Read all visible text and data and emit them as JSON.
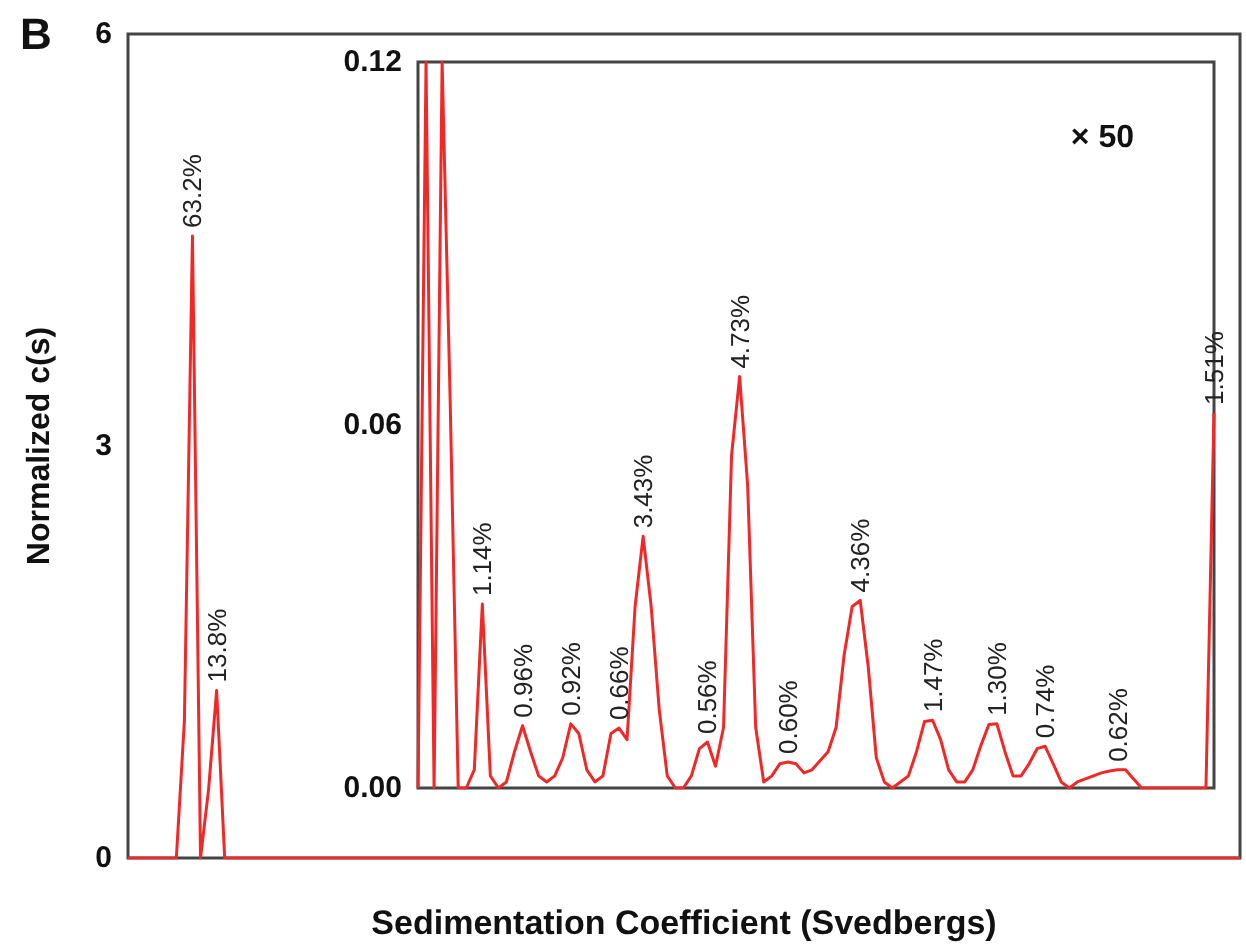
{
  "chart_data": [
    {
      "type": "line",
      "title": "B",
      "xlabel": "Sedimentation Coefficient (Svedbergs)",
      "ylabel": "Normalized c(s)",
      "color": "#f02828",
      "tick_labels": "y",
      "ylim": [
        0,
        6
      ],
      "yticks": [
        0,
        3,
        6
      ],
      "annotations": [
        {
          "text": "63.2%",
          "y": 4.53
        },
        {
          "text": "13.8%",
          "y": 1.22
        }
      ],
      "categories": [
        null,
        null,
        null,
        null,
        null,
        null,
        null,
        null,
        null,
        null,
        null,
        null,
        null,
        null,
        null,
        null,
        null,
        null,
        null,
        null,
        null,
        null,
        null,
        null,
        null,
        null,
        null,
        null,
        null,
        null,
        null,
        null,
        null,
        null,
        null,
        null,
        null,
        null,
        null,
        null,
        null,
        null,
        null,
        null,
        null,
        null,
        null,
        null,
        null,
        null,
        null,
        null,
        null,
        null,
        null,
        null,
        null,
        null,
        null,
        null,
        null,
        null,
        null,
        null,
        null,
        null,
        null,
        null,
        null,
        null,
        null,
        null,
        null,
        null,
        null,
        null,
        null,
        null,
        null,
        null,
        null,
        null,
        null,
        null,
        null,
        null,
        null,
        null,
        null,
        null,
        null,
        null,
        null,
        null,
        null,
        null,
        null,
        null,
        null,
        null,
        null,
        null,
        null,
        null,
        null,
        null,
        null,
        null,
        null,
        null,
        null,
        null,
        null,
        null,
        null,
        null,
        null,
        null,
        null,
        null,
        null,
        null,
        null,
        null,
        null,
        null,
        null,
        null,
        null,
        null,
        null,
        null,
        null,
        null,
        null,
        null,
        null,
        null,
        null
      ],
      "values": [
        0,
        0,
        0,
        0,
        0,
        0,
        0,
        1.0,
        4.53,
        0,
        0.5,
        1.22,
        0,
        0,
        0,
        0,
        0,
        0,
        0,
        0,
        0,
        0,
        0,
        0,
        0,
        0,
        0,
        0,
        0,
        0,
        0,
        0,
        0,
        0,
        0,
        0,
        0,
        0,
        0,
        0,
        0,
        0,
        0,
        0,
        0,
        0,
        0,
        0,
        0,
        0,
        0,
        0,
        0,
        0,
        0,
        0,
        0,
        0,
        0,
        0,
        0,
        0,
        0,
        0,
        0,
        0,
        0,
        0,
        0,
        0,
        0,
        0,
        0,
        0,
        0,
        0,
        0,
        0,
        0,
        0,
        0,
        0,
        0,
        0,
        0,
        0,
        0,
        0,
        0,
        0,
        0,
        0,
        0,
        0,
        0,
        0,
        0,
        0,
        0,
        0,
        0,
        0,
        0,
        0,
        0,
        0,
        0,
        0,
        0,
        0,
        0,
        0,
        0,
        0,
        0,
        0,
        0,
        0,
        0,
        0,
        0,
        0,
        0,
        0,
        0,
        0,
        0,
        0,
        0,
        0,
        0,
        0,
        0,
        0,
        0,
        0,
        0,
        0,
        0
      ]
    },
    {
      "type": "line",
      "color": "#f02828",
      "tick_labels": "y",
      "annotations": [
        "× 50",
        {
          "text": "1.14%",
          "y": 0.0304
        },
        {
          "text": "0.96%",
          "y": 0.0103
        },
        {
          "text": "0.92%",
          "y": 0.0106
        },
        {
          "text": "0.66%",
          "y": 0.0099
        },
        {
          "text": "3.43%",
          "y": 0.0416
        },
        {
          "text": "0.56%",
          "y": 0.0076
        },
        {
          "text": "4.73%",
          "y": 0.068
        },
        {
          "text": "0.60%",
          "y": 0.0043
        },
        {
          "text": "4.36%",
          "y": 0.031
        },
        {
          "text": "1.47%",
          "y": 0.0112
        },
        {
          "text": "1.30%",
          "y": 0.0106
        },
        {
          "text": "0.74%",
          "y": 0.0069
        },
        {
          "text": "0.62%",
          "y": 0.003
        },
        {
          "text": "1.51%",
          "y": 0.062
        }
      ],
      "ylim": [
        0,
        0.12
      ],
      "yticks": [
        {
          "value": 0,
          "label": "0.00"
        },
        0.06,
        0.12
      ],
      "categories": [
        null,
        null,
        null,
        null,
        null,
        null,
        null,
        null,
        null,
        null,
        null,
        null,
        null,
        null,
        null,
        null,
        null,
        null,
        null,
        null,
        null,
        null,
        null,
        null,
        null,
        null,
        null,
        null,
        null,
        null,
        null,
        null,
        null,
        null,
        null,
        null,
        null,
        null,
        null,
        null,
        null,
        null,
        null,
        null,
        null,
        null,
        null,
        null,
        null,
        null,
        null,
        null,
        null,
        null,
        null,
        null,
        null,
        null,
        null,
        null,
        null,
        null,
        null,
        null,
        null,
        null,
        null,
        null,
        null,
        null,
        null,
        null,
        null,
        null,
        null,
        null,
        null,
        null,
        null,
        null,
        null,
        null,
        null,
        null,
        null,
        null,
        null,
        null,
        null,
        null,
        null,
        null,
        null,
        null,
        null,
        null,
        null,
        null,
        null,
        null
      ],
      "values": [
        0,
        0.12,
        0,
        0.12,
        0.064,
        0,
        0,
        0.003,
        0.0304,
        0.002,
        0,
        0.001,
        0.006,
        0.0103,
        0.006,
        0.002,
        0.001,
        0.002,
        0.005,
        0.0106,
        0.009,
        0.003,
        0.001,
        0.002,
        0.009,
        0.0099,
        0.008,
        0.03,
        0.0416,
        0.03,
        0.013,
        0.002,
        0,
        0,
        0.002,
        0.0065,
        0.0076,
        0.0036,
        0.01,
        0.055,
        0.068,
        0.05,
        0.01,
        0.001,
        0.002,
        0.004,
        0.0043,
        0.004,
        0.0025,
        0.003,
        0.0045,
        0.006,
        0.01,
        0.022,
        0.03,
        0.031,
        0.02,
        0.005,
        0.001,
        0,
        0.001,
        0.002,
        0.006,
        0.011,
        0.0112,
        0.008,
        0.003,
        0.001,
        0.001,
        0.003,
        0.007,
        0.0105,
        0.0106,
        0.006,
        0.002,
        0.002,
        0.004,
        0.0065,
        0.0069,
        0.004,
        0.001,
        0,
        0.001,
        0.0015,
        0.002,
        0.0025,
        0.0028,
        0.003,
        0.003,
        0.0015,
        0,
        0,
        0,
        0,
        0,
        0,
        0,
        0,
        0,
        0.062
      ]
    }
  ]
}
